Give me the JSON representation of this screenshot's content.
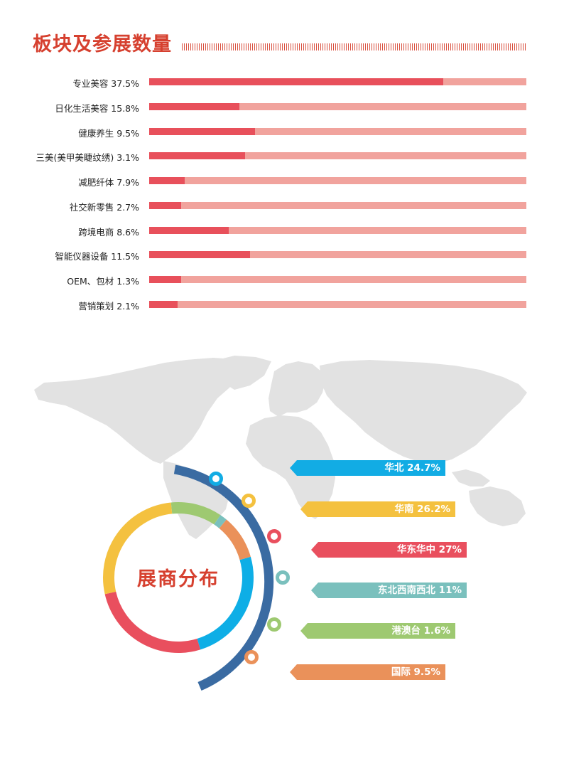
{
  "section_title": "板块及参展数量",
  "chart_data": [
    {
      "type": "bar",
      "title": "板块及参展数量",
      "categories": [
        "专业美容",
        "日化生活美容",
        "健康养生",
        "三美(美甲美睫纹绣)",
        "减肥纤体",
        "社交新零售",
        "跨境电商",
        "智能仪器设备",
        "OEM、包材",
        "营销策划"
      ],
      "value_labels": [
        "37.5%",
        "15.8%",
        "9.5%",
        "3.1%",
        "7.9%",
        "2.7%",
        "8.6%",
        "11.5%",
        "1.3%",
        "2.1%"
      ],
      "bar_labels": [
        "专业美容 37.5%",
        "日化生活美容 15.8%",
        "健康养生 9.5%",
        "三美(美甲美睫纹绣) 3.1%",
        "减肥纤体 7.9%",
        "社交新零售 2.7%",
        "跨境电商 8.6%",
        "智能仪器设备 11.5%",
        "OEM、包材 1.3%",
        "营销策划 2.1%"
      ],
      "fill_fraction": [
        0.78,
        0.24,
        0.28,
        0.255,
        0.095,
        0.085,
        0.21,
        0.268,
        0.085,
        0.075
      ],
      "colors": {
        "fill": "#e8505b",
        "track": "#f1a39d"
      }
    },
    {
      "type": "pie",
      "title": "展商分布",
      "categories": [
        "华北",
        "华南",
        "华东华中",
        "东北西南西北",
        "港澳台",
        "国际"
      ],
      "values": [
        24.7,
        26.2,
        27,
        11,
        1.6,
        9.5
      ],
      "labels": [
        "华北 24.7%",
        "华南 26.2%",
        "华东华中 27%",
        "东北西南西北 11%",
        "港澳台 1.6%",
        "国际 9.5%"
      ],
      "ring_colors": [
        "#0eaee6",
        "#e94f5e",
        "#f4c13f",
        "#9ec971",
        "#7ac0bd",
        "#ea915a"
      ],
      "tag_colors": [
        "#12ace4",
        "#f4c13f",
        "#e94f5e",
        "#7ac0bd",
        "#9ec971",
        "#ea915a"
      ]
    }
  ]
}
